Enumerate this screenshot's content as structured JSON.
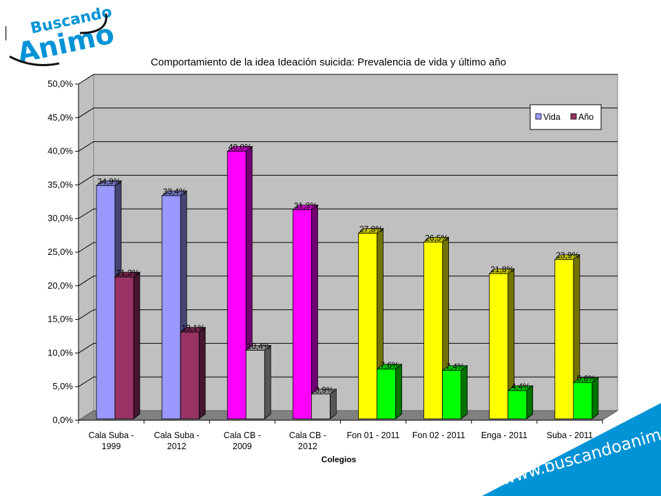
{
  "logo": {
    "line1": "Buscando",
    "line2": "Animo"
  },
  "url": "www.buscandoanimo.org",
  "colors": {
    "vida_a": "#9999ff",
    "ano_a": "#993366",
    "vida_b": "#ff00ff",
    "ano_b": "#c0c0c0",
    "vida_c": "#ffff00",
    "ano_c": "#00ff00",
    "plot_bg": "#c0c0c0",
    "floor": "#808080",
    "banner": "#0093d6"
  },
  "chart_data": {
    "type": "bar",
    "title": "Comportamiento de la idea Ideación suicida: Prevalencia de vida y último año",
    "xlabel": "Colegios",
    "ylabel": "",
    "ylim": [
      0,
      50
    ],
    "yticks": [
      "0,0%",
      "5,0%",
      "10,0%",
      "15,0%",
      "20,0%",
      "25,0%",
      "30,0%",
      "35,0%",
      "40,0%",
      "45,0%",
      "50,0%"
    ],
    "categories": [
      [
        "Cala Suba -",
        "1999"
      ],
      [
        "Cala Suba -",
        "2012"
      ],
      [
        "Cala CB -",
        "2009"
      ],
      [
        "Cala CB -",
        "2012"
      ],
      [
        "Fon 01 - 2011"
      ],
      [
        "Fon 02 - 2011"
      ],
      [
        "Enga - 2011"
      ],
      [
        "Suba - 2011"
      ]
    ],
    "series": [
      {
        "name": "Vida",
        "values": [
          34.9,
          33.4,
          40.0,
          31.3,
          27.8,
          26.5,
          21.8,
          23.9
        ],
        "labels": [
          "34,9%",
          "33,4%",
          "40,0%",
          "31,3%",
          "27,8%",
          "26,5%",
          "21,8%",
          "23,9%"
        ]
      },
      {
        "name": "Año",
        "values": [
          21.3,
          13.1,
          10.4,
          3.9,
          7.6,
          7.4,
          4.4,
          5.6
        ],
        "labels": [
          "21,3%",
          "13,1%",
          "10,4%",
          "3,9%",
          "7,6%",
          "7,4%",
          "4,4%",
          "5,6%"
        ]
      }
    ],
    "legend": "top-right",
    "grid": true
  }
}
